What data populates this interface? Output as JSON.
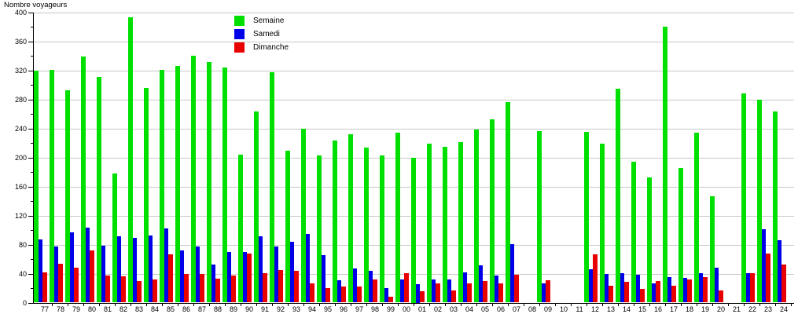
{
  "title": "Nombre voyageurs",
  "chart_data": {
    "type": "bar",
    "title": "Nombre voyageurs",
    "xlabel": "",
    "ylabel": "Nombre voyageurs",
    "ylim": [
      0,
      400
    ],
    "ytick_step": 40,
    "ytick_minor_step": 20,
    "grid": true,
    "legend_position": "top-center",
    "categories": [
      "77",
      "78",
      "79",
      "80",
      "81",
      "82",
      "83",
      "84",
      "85",
      "86",
      "87",
      "88",
      "89",
      "90",
      "91",
      "92",
      "93",
      "94",
      "95",
      "96",
      "97",
      "98",
      "99",
      "00",
      "01",
      "02",
      "03",
      "04",
      "05",
      "06",
      "07",
      "08",
      "09",
      "10",
      "11",
      "12",
      "13",
      "14",
      "15",
      "16",
      "17",
      "18",
      "19",
      "20",
      "21",
      "22",
      "23",
      "24"
    ],
    "series": [
      {
        "name": "Semaine",
        "color": "#00E000",
        "values": [
          320,
          321,
          293,
          339,
          311,
          178,
          393,
          296,
          321,
          326,
          340,
          332,
          324,
          204,
          264,
          318,
          209,
          240,
          203,
          224,
          232,
          214,
          203,
          234,
          200,
          219,
          215,
          221,
          239,
          253,
          277,
          null,
          236,
          null,
          null,
          235,
          219,
          295,
          194,
          173,
          380,
          186,
          234,
          147,
          null,
          289,
          280,
          264
        ]
      },
      {
        "name": "Samedi",
        "color": "#0000E8",
        "values": [
          87,
          77,
          97,
          103,
          79,
          91,
          89,
          93,
          102,
          72,
          77,
          53,
          70,
          70,
          91,
          77,
          84,
          95,
          65,
          31,
          47,
          44,
          20,
          32,
          25,
          32,
          32,
          42,
          51,
          37,
          81,
          null,
          27,
          null,
          null,
          46,
          40,
          41,
          38,
          27,
          35,
          34,
          41,
          48,
          null,
          41,
          101,
          86
        ]
      },
      {
        "name": "Dimanche",
        "color": "#E80000",
        "values": [
          42,
          54,
          48,
          72,
          37,
          36,
          30,
          32,
          67,
          40,
          40,
          33,
          37,
          68,
          41,
          45,
          44,
          26,
          20,
          22,
          22,
          32,
          8,
          41,
          16,
          27,
          17,
          27,
          30,
          27,
          38,
          null,
          31,
          null,
          null,
          67,
          23,
          29,
          19,
          30,
          23,
          32,
          35,
          17,
          null,
          41,
          68,
          53
        ]
      }
    ]
  },
  "colors": {
    "background": "#ffffff",
    "grid": "#c8c8c8",
    "axis": "#000000",
    "text": "#000000"
  }
}
